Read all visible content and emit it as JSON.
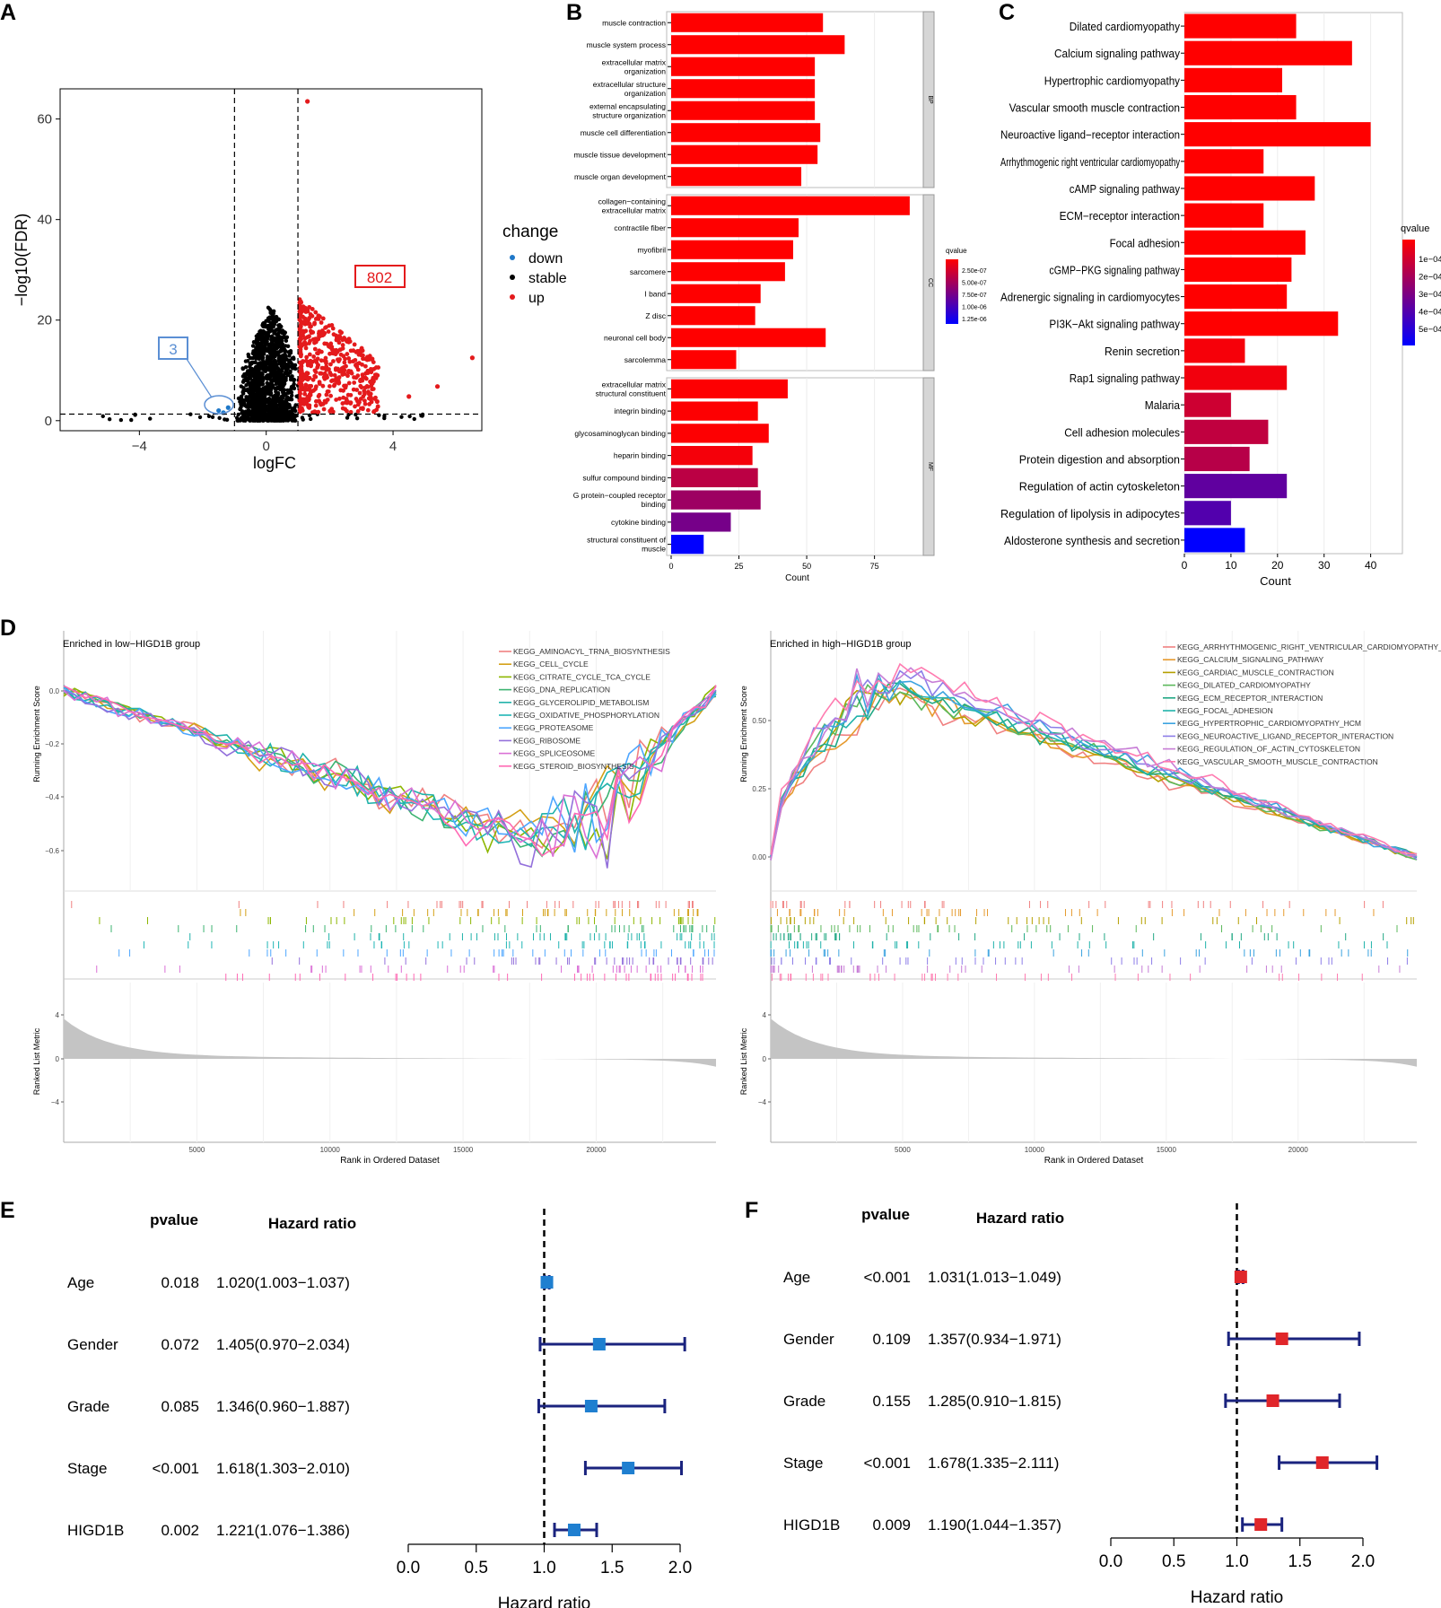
{
  "chart_data": [
    {
      "panel": "A",
      "type": "scatter",
      "xlabel": "logFC",
      "ylabel": "−log10(FDR)",
      "xlim": [
        -6.5,
        6.8
      ],
      "ylim": [
        -2,
        66
      ],
      "xticks": [
        -4,
        0,
        4
      ],
      "xtick_labels": [
        "−4",
        "0",
        "4"
      ],
      "yticks": [
        0,
        20,
        40,
        60
      ],
      "thresholds": {
        "logFC": [
          -1,
          1
        ],
        "neglog10FDR": 1.3
      },
      "legend": {
        "title": "change",
        "items": [
          "down",
          "stable",
          "up"
        ],
        "colors": [
          "#1f78c8",
          "#000000",
          "#e41a1c"
        ]
      },
      "annotations": {
        "down_count": "3",
        "up_count": "802"
      },
      "labeled_points": [
        {
          "group": "up",
          "x": 1.3,
          "y": 63.5
        },
        {
          "group": "up",
          "x": 6.5,
          "y": 12.5
        },
        {
          "group": "up",
          "x": 5.4,
          "y": 6.8
        },
        {
          "group": "up",
          "x": 4.5,
          "y": 4.8
        },
        {
          "group": "up",
          "x": 3.5,
          "y": 3.8
        },
        {
          "group": "down",
          "x": -1.5,
          "y": 2.0
        },
        {
          "group": "down",
          "x": -1.2,
          "y": 2.6
        },
        {
          "group": "down",
          "x": -1.35,
          "y": 1.6
        }
      ]
    },
    {
      "panel": "B",
      "type": "bar",
      "orientation": "horizontal",
      "xlabel": "Count",
      "xlim": [
        0,
        93
      ],
      "xticks": [
        0,
        25,
        50,
        75
      ],
      "legend": {
        "title": "qvalue",
        "labels": [
          "2.50e-07",
          "5.00e-07",
          "7.50e-07",
          "1.00e-06",
          "1.25e-06"
        ]
      },
      "facets": [
        {
          "name": "BP",
          "categories": [
            "muscle contraction",
            "muscle system process",
            "extracellular matrix\norganization",
            "extracellular structure\norganization",
            "external encapsulating\nstructure organization",
            "muscle cell differentiation",
            "muscle tissue development",
            "muscle organ development"
          ],
          "values": [
            56,
            64,
            53,
            53,
            53,
            55,
            54,
            48
          ],
          "qvalues": [
            1e-09,
            1e-09,
            1e-09,
            1e-09,
            1e-09,
            1e-09,
            1e-09,
            1e-09
          ]
        },
        {
          "name": "CC",
          "categories": [
            "collagen−containing\nextracellular matrix",
            "contractile fiber",
            "myofibril",
            "sarcomere",
            "I band",
            "Z disc",
            "neuronal cell body",
            "sarcolemma"
          ],
          "values": [
            88,
            47,
            45,
            42,
            33,
            31,
            57,
            24
          ],
          "qvalues": [
            1e-09,
            1e-09,
            1e-09,
            1e-09,
            1e-09,
            1e-09,
            1e-09,
            1e-09
          ]
        },
        {
          "name": "MF",
          "categories": [
            "extracellular matrix\nstructural constituent",
            "integrin binding",
            "glycosaminoglycan binding",
            "heparin binding",
            "sulfur compound binding",
            "G protein−coupled receptor\nbinding",
            "cytokine binding",
            "structural constituent of\nmuscle"
          ],
          "values": [
            43,
            32,
            36,
            30,
            32,
            33,
            22,
            12
          ],
          "qvalues": [
            1e-08,
            1e-08,
            1e-08,
            5e-08,
            3.5e-07,
            5e-07,
            7e-07,
            1.3e-06
          ]
        }
      ]
    },
    {
      "panel": "C",
      "type": "bar",
      "orientation": "horizontal",
      "xlabel": "Count",
      "xlim": [
        0,
        42
      ],
      "xticks": [
        0,
        10,
        20,
        30,
        40
      ],
      "legend": {
        "title": "qvalue",
        "labels": [
          "1e−04",
          "2e−04",
          "3e−04",
          "4e−04",
          "5e−04"
        ]
      },
      "categories": [
        "Dilated cardiomyopathy",
        "Calcium signaling pathway",
        "Hypertrophic cardiomyopathy",
        "Vascular smooth muscle contraction",
        "Neuroactive ligand−receptor interaction",
        "Arrhythmogenic right ventricular cardiomyopathy",
        "cAMP signaling pathway",
        "ECM−receptor interaction",
        "Focal adhesion",
        "cGMP−PKG signaling pathway",
        "Adrenergic signaling in cardiomyocytes",
        "PI3K−Akt signaling pathway",
        "Renin secretion",
        "Rap1 signaling pathway",
        "Malaria",
        "Cell adhesion molecules",
        "Protein digestion and absorption",
        "Regulation of actin cytoskeleton",
        "Regulation of lipolysis in adipocytes",
        "Aldosterone synthesis and secretion"
      ],
      "values": [
        24,
        36,
        21,
        24,
        40,
        17,
        28,
        17,
        26,
        23,
        22,
        33,
        13,
        22,
        10,
        18,
        14,
        22,
        10,
        13
      ],
      "qvalues": [
        1e-06,
        1e-06,
        1e-06,
        1e-06,
        1e-06,
        1e-06,
        1e-06,
        1e-06,
        1e-06,
        1e-06,
        1e-06,
        1e-06,
        2e-05,
        3e-05,
        0.00011,
        0.00014,
        0.00016,
        0.00035,
        0.00038,
        0.00056
      ]
    },
    {
      "panel": "D-left",
      "type": "line",
      "title": "Enriched in low−HIGD1B group",
      "ylabel": "Running Enrichment Score",
      "ylabel2": "Ranked List Metric",
      "xlabel": "Rank in Ordered Dataset",
      "xticks": [
        5000,
        10000,
        15000,
        20000
      ],
      "yticks": [
        "0.0",
        "−0.2",
        "−0.4",
        "−0.6"
      ],
      "metric_ticks": [
        "4",
        "0",
        "−4"
      ],
      "legend": [
        "KEGG_AMINOACYL_TRNA_BIOSYNTHESIS",
        "KEGG_CELL_CYCLE",
        "KEGG_CITRATE_CYCLE_TCA_CYCLE",
        "KEGG_DNA_REPLICATION",
        "KEGG_GLYCEROLIPID_METABOLISM",
        "KEGG_OXIDATIVE_PHOSPHORYLATION",
        "KEGG_PROTEASOME",
        "KEGG_RIBOSOME",
        "KEGG_SPLICEOSOME",
        "KEGG_STEROID_BIOSYNTHESIS"
      ]
    },
    {
      "panel": "D-right",
      "type": "line",
      "title": "Enriched in high−HIGD1B group",
      "ylabel": "Running Enrichment Score",
      "ylabel2": "Ranked List Metric",
      "xlabel": "Rank in Ordered Dataset",
      "xticks": [
        5000,
        10000,
        15000,
        20000
      ],
      "yticks": [
        "0.50",
        "0.25",
        "0.00"
      ],
      "metric_ticks": [
        "4",
        "0",
        "−4"
      ],
      "legend": [
        "KEGG_ARRHYTHMOGENIC_RIGHT_VENTRICULAR_CARDIOMYOPATHY_ARV",
        "KEGG_CALCIUM_SIGNALING_PATHWAY",
        "KEGG_CARDIAC_MUSCLE_CONTRACTION",
        "KEGG_DILATED_CARDIOMYOPATHY",
        "KEGG_ECM_RECEPTOR_INTERACTION",
        "KEGG_FOCAL_ADHESION",
        "KEGG_HYPERTROPHIC_CARDIOMYOPATHY_HCM",
        "KEGG_NEUROACTIVE_LIGAND_RECEPTOR_INTERACTION",
        "KEGG_REGULATION_OF_ACTIN_CYTOSKELETON",
        "KEGG_VASCULAR_SMOOTH_MUSCLE_CONTRACTION"
      ]
    },
    {
      "panel": "E",
      "type": "forest",
      "xlabel": "Hazard ratio",
      "xlim": [
        0,
        2.1
      ],
      "xticks": [
        "0.0",
        "0.5",
        "1.0",
        "1.5",
        "2.0"
      ],
      "col_headers": [
        "pvalue",
        "Hazard ratio"
      ],
      "marker_color": "#1f7fd0",
      "rows": [
        {
          "var": "Age",
          "p": "0.018",
          "hr_text": "1.020(1.003−1.037)",
          "hr": 1.02,
          "lo": 1.003,
          "hi": 1.037
        },
        {
          "var": "Gender",
          "p": "0.072",
          "hr_text": "1.405(0.970−2.034)",
          "hr": 1.405,
          "lo": 0.97,
          "hi": 2.034
        },
        {
          "var": "Grade",
          "p": "0.085",
          "hr_text": "1.346(0.960−1.887)",
          "hr": 1.346,
          "lo": 0.96,
          "hi": 1.887
        },
        {
          "var": "Stage",
          "p": "<0.001",
          "hr_text": "1.618(1.303−2.010)",
          "hr": 1.618,
          "lo": 1.303,
          "hi": 2.01
        },
        {
          "var": "HIGD1B",
          "p": "0.002",
          "hr_text": "1.221(1.076−1.386)",
          "hr": 1.221,
          "lo": 1.076,
          "hi": 1.386
        }
      ]
    },
    {
      "panel": "F",
      "type": "forest",
      "xlabel": "Hazard ratio",
      "xlim": [
        0,
        2.1
      ],
      "xticks": [
        "0.0",
        "0.5",
        "1.0",
        "1.5",
        "2.0"
      ],
      "col_headers": [
        "pvalue",
        "Hazard ratio"
      ],
      "marker_color": "#e0262a",
      "rows": [
        {
          "var": "Age",
          "p": "<0.001",
          "hr_text": "1.031(1.013−1.049)",
          "hr": 1.031,
          "lo": 1.013,
          "hi": 1.049
        },
        {
          "var": "Gender",
          "p": "0.109",
          "hr_text": "1.357(0.934−1.971)",
          "hr": 1.357,
          "lo": 0.934,
          "hi": 1.971
        },
        {
          "var": "Grade",
          "p": "0.155",
          "hr_text": "1.285(0.910−1.815)",
          "hr": 1.285,
          "lo": 0.91,
          "hi": 1.815
        },
        {
          "var": "Stage",
          "p": "<0.001",
          "hr_text": "1.678(1.335−2.111)",
          "hr": 1.678,
          "lo": 1.335,
          "hi": 2.111
        },
        {
          "var": "HIGD1B",
          "p": "0.009",
          "hr_text": "1.190(1.044−1.357)",
          "hr": 1.19,
          "lo": 1.044,
          "hi": 1.357
        }
      ]
    }
  ],
  "panel_letters": [
    "A",
    "B",
    "C",
    "D",
    "E",
    "F"
  ],
  "colors": {
    "up": "#e41a1c",
    "down": "#1f78c8",
    "stable": "#000000",
    "qhigh": "#ff0000",
    "qlow": "#0000ff",
    "gseaLeft": [
      "#f08080",
      "#d4a017",
      "#8db600",
      "#3cb371",
      "#20b2aa",
      "#1fb5b5",
      "#4da6ff",
      "#9370db",
      "#da70d6",
      "#ff69b4"
    ],
    "gseaRight": [
      "#f08080",
      "#e69a2e",
      "#b5a000",
      "#5cb85c",
      "#22a884",
      "#20b2aa",
      "#3ba3e0",
      "#8d7ee8",
      "#c77dd6",
      "#ff7bb0"
    ]
  }
}
